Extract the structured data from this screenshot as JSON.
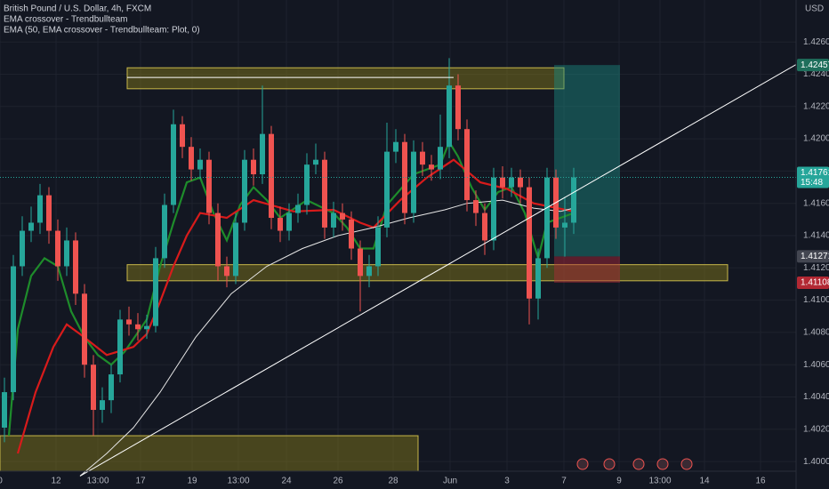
{
  "chart_data": {
    "type": "candlestick",
    "title": "British Pound / U.S. Dollar, 4h, FXCM",
    "indicators": [
      "EMA crossover - Trendbullteam",
      "EMA (50, EMA crossover - Trendbullteam: Plot, 0)"
    ],
    "currency": "USD",
    "colors": {
      "up": "#26a69a",
      "down": "#ef5350"
    },
    "open": [
      1.4021,
      1.4043,
      1.4121,
      1.4143,
      1.4148,
      1.4165,
      1.4143,
      1.4121,
      1.4137,
      1.4104,
      1.406,
      1.4032,
      1.4038,
      1.4054,
      1.4088,
      1.4085,
      1.4082,
      1.4084,
      1.4126,
      1.4159,
      1.4209,
      1.4195,
      1.4181,
      1.4187,
      1.4154,
      1.4121,
      1.4115,
      1.4148,
      1.4187,
      1.4178,
      1.4203,
      1.4151,
      1.4143,
      1.4154,
      1.4159,
      1.4184,
      1.4187,
      1.4145,
      1.4154,
      1.415,
      1.4132,
      1.4115,
      1.4121,
      1.4145,
      1.4192,
      1.4198,
      1.4154,
      1.4192,
      1.4184,
      1.4181,
      1.4195,
      1.4233,
      1.4206,
      1.4162,
      1.4154,
      1.4137,
      1.4176,
      1.417,
      1.4176,
      1.417,
      1.4101,
      1.4126,
      1.4176,
      1.4145,
      1.4148
    ],
    "high": [
      1.4052,
      1.4128,
      1.4152,
      1.4158,
      1.4172,
      1.417,
      1.415,
      1.4145,
      1.4142,
      1.411,
      1.4066,
      1.4046,
      1.406,
      1.4094,
      1.4096,
      1.4092,
      1.4091,
      1.4133,
      1.4166,
      1.4218,
      1.4214,
      1.4201,
      1.4194,
      1.4192,
      1.416,
      1.4127,
      1.4154,
      1.4193,
      1.4194,
      1.4233,
      1.4208,
      1.4158,
      1.416,
      1.4166,
      1.4191,
      1.4197,
      1.4192,
      1.4161,
      1.416,
      1.4155,
      1.4137,
      1.4128,
      1.4152,
      1.421,
      1.4206,
      1.4203,
      1.4199,
      1.4198,
      1.419,
      1.4215,
      1.425,
      1.424,
      1.4212,
      1.4168,
      1.416,
      1.4182,
      1.4183,
      1.4182,
      1.4181,
      1.4176,
      1.4132,
      1.4182,
      1.4181,
      1.4164,
      1.4182
    ],
    "low": [
      1.4012,
      1.4038,
      1.4115,
      1.4136,
      1.4141,
      1.4135,
      1.4112,
      1.4115,
      1.4097,
      1.4052,
      1.4016,
      1.4024,
      1.403,
      1.4049,
      1.4078,
      1.4075,
      1.4076,
      1.408,
      1.412,
      1.4154,
      1.4188,
      1.4174,
      1.4175,
      1.4147,
      1.4112,
      1.4108,
      1.411,
      1.4143,
      1.4171,
      1.4172,
      1.4144,
      1.4136,
      1.4137,
      1.4148,
      1.4153,
      1.4178,
      1.4138,
      1.4139,
      1.4143,
      1.4125,
      1.4093,
      1.4108,
      1.4115,
      1.4139,
      1.4185,
      1.4147,
      1.4148,
      1.4177,
      1.4174,
      1.4175,
      1.4188,
      1.4199,
      1.4155,
      1.4146,
      1.4128,
      1.4131,
      1.4163,
      1.4164,
      1.416,
      1.4085,
      1.4088,
      1.412,
      1.4138,
      1.4127,
      1.4141
    ],
    "close": [
      1.4043,
      1.4121,
      1.4143,
      1.4148,
      1.4165,
      1.4143,
      1.4121,
      1.4137,
      1.4104,
      1.406,
      1.4032,
      1.4038,
      1.4054,
      1.4088,
      1.4085,
      1.4082,
      1.4084,
      1.4126,
      1.4159,
      1.4209,
      1.4195,
      1.4181,
      1.4187,
      1.4154,
      1.4121,
      1.4115,
      1.4148,
      1.4187,
      1.4178,
      1.4203,
      1.4151,
      1.4143,
      1.4154,
      1.4159,
      1.4184,
      1.4187,
      1.4145,
      1.4154,
      1.415,
      1.4132,
      1.4115,
      1.4121,
      1.4145,
      1.4192,
      1.4198,
      1.4154,
      1.4192,
      1.4184,
      1.4181,
      1.4195,
      1.4233,
      1.4206,
      1.4162,
      1.4154,
      1.4137,
      1.4176,
      1.417,
      1.4176,
      1.417,
      1.4101,
      1.4126,
      1.4176,
      1.4145,
      1.4148,
      1.41761
    ],
    "xlim": [
      -0.5,
      89
    ],
    "xticks": [
      {
        "value": -0.5,
        "label": "0"
      },
      {
        "value": 5.8,
        "label": "12"
      },
      {
        "value": 10.5,
        "label": "13:00"
      },
      {
        "value": 15.3,
        "label": "17"
      },
      {
        "value": 21.1,
        "label": "19"
      },
      {
        "value": 26.3,
        "label": "13:00"
      },
      {
        "value": 31.7,
        "label": "24"
      },
      {
        "value": 37.5,
        "label": "26"
      },
      {
        "value": 43.7,
        "label": "28"
      },
      {
        "value": 50.1,
        "label": "Jun"
      },
      {
        "value": 56.5,
        "label": "3"
      },
      {
        "value": 62.9,
        "label": "7"
      },
      {
        "value": 69.1,
        "label": "9"
      },
      {
        "value": 73.7,
        "label": "13:00"
      },
      {
        "value": 78.7,
        "label": "14"
      },
      {
        "value": 85,
        "label": "16"
      }
    ],
    "ylim": [
      1.3994,
      1.4286
    ],
    "yticks": [
      {
        "value": 1.4,
        "label": "1.40000"
      },
      {
        "value": 1.402,
        "label": "1.40200"
      },
      {
        "value": 1.404,
        "label": "1.40400"
      },
      {
        "value": 1.406,
        "label": "1.40600"
      },
      {
        "value": 1.408,
        "label": "1.40800"
      },
      {
        "value": 1.41,
        "label": "1.41000"
      },
      {
        "value": 1.412,
        "label": "1.41200"
      },
      {
        "value": 1.414,
        "label": "1.41400"
      },
      {
        "value": 1.416,
        "label": "1.41600"
      },
      {
        "value": 1.418,
        "label": "1.41800"
      },
      {
        "value": 1.42,
        "label": "1.42000"
      },
      {
        "value": 1.422,
        "label": "1.42200"
      },
      {
        "value": 1.424,
        "label": "1.42400"
      },
      {
        "value": 1.426,
        "label": "1.42600"
      }
    ],
    "grid": true,
    "lines": [
      {
        "color": "#1e8c2b",
        "x": [
          0.5,
          1.5,
          3,
          4.5,
          6,
          7.5,
          9,
          10.5,
          12,
          13.5,
          16,
          17.5,
          19,
          20.5,
          22,
          23.5,
          25,
          26.5,
          28,
          29.5,
          31,
          34,
          37,
          38.5,
          40,
          41.5,
          43,
          46,
          49,
          50,
          51,
          52.5,
          54,
          55.5,
          57,
          58.5,
          60,
          61,
          64
        ],
        "values": [
          1.4016,
          1.4082,
          1.4115,
          1.4126,
          1.4121,
          1.4093,
          1.4077,
          1.4066,
          1.406,
          1.4068,
          1.4088,
          1.4121,
          1.4148,
          1.4173,
          1.4176,
          1.4154,
          1.4137,
          1.4159,
          1.417,
          1.4162,
          1.4151,
          1.4162,
          1.4154,
          1.4145,
          1.4132,
          1.4132,
          1.4159,
          1.4178,
          1.4184,
          1.4198,
          1.4189,
          1.417,
          1.4156,
          1.4167,
          1.417,
          1.4154,
          1.4126,
          1.4148,
          1.4154
        ]
      },
      {
        "color": "#d81b1b",
        "x": [
          1.5,
          3.5,
          5.5,
          7,
          8.5,
          11.5,
          14.5,
          16,
          17.5,
          19,
          20.5,
          22,
          25,
          28,
          32.5,
          37,
          40,
          41.5,
          44.5,
          47.5,
          50.5,
          53.5,
          56.5,
          59.5,
          64
        ],
        "values": [
          1.4005,
          1.4043,
          1.4071,
          1.4085,
          1.4079,
          1.4066,
          1.4071,
          1.4079,
          1.4099,
          1.4121,
          1.414,
          1.4154,
          1.4151,
          1.4162,
          1.4155,
          1.4156,
          1.4148,
          1.4145,
          1.4162,
          1.4176,
          1.4187,
          1.4173,
          1.4169,
          1.416,
          1.4155
        ]
      },
      {
        "color": "#e6e6e6",
        "x": [
          8.5,
          11.5,
          14.5,
          17.5,
          21.5,
          25.5,
          29.5,
          33.5,
          37.5,
          41.5,
          45.5,
          49.5,
          52,
          56,
          59.5,
          62.5,
          64
        ],
        "values": [
          1.3991,
          1.4005,
          1.4021,
          1.4043,
          1.4077,
          1.4104,
          1.4121,
          1.4132,
          1.414,
          1.4145,
          1.4151,
          1.4156,
          1.416,
          1.4162,
          1.4157,
          1.4155,
          1.4157
        ]
      }
    ],
    "trendlines": [
      {
        "color": "#ffffff",
        "x": [
          8.5,
          89
        ],
        "values": [
          1.3991,
          1.4246
        ]
      },
      {
        "color": "#ffffff",
        "x": [
          13.8,
          50.5
        ],
        "values": [
          1.4238,
          1.4238
        ]
      }
    ],
    "zones": [
      {
        "color": "#8a7f1a",
        "x": [
          13.8,
          62.9
        ],
        "values": [
          1.4244,
          1.4231
        ]
      },
      {
        "color": "#8a7f1a",
        "x": [
          13.8,
          81.3
        ],
        "values": [
          1.4122,
          1.4112
        ]
      },
      {
        "color": "#8a7f1a",
        "x": [
          -0.5,
          46.5
        ],
        "values": [
          1.4016,
          1.3994
        ]
      }
    ],
    "position": {
      "x": [
        61.8,
        69.2
      ],
      "target": 1.42457,
      "entry": 1.41271,
      "stop": 1.41108
    },
    "last_price": 1.41761,
    "countdown": "15:48"
  }
}
